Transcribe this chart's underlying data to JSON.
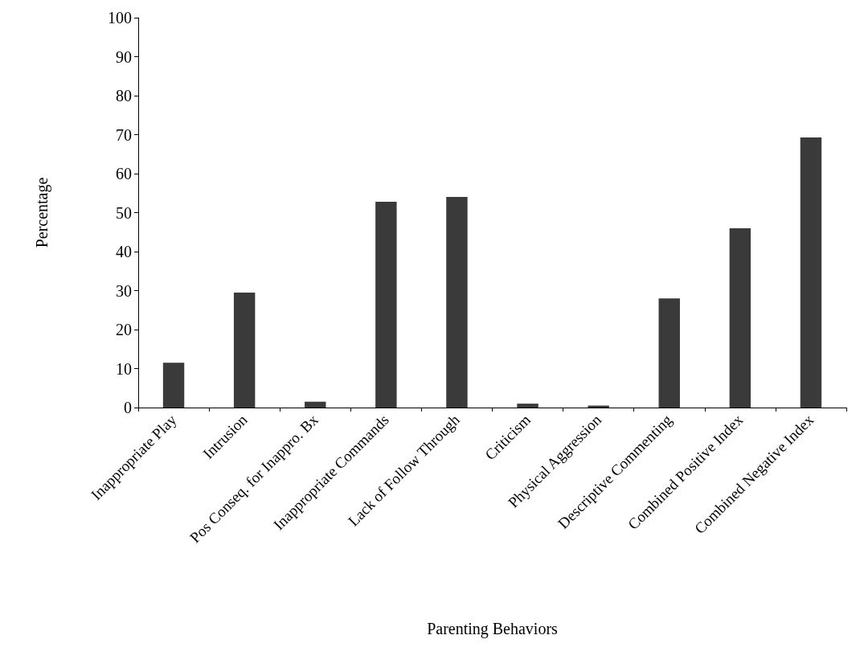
{
  "chart_data": {
    "type": "bar",
    "xlabel": "Parenting Behaviors",
    "ylabel": "Percentage",
    "categories": [
      "Inappropriate Play",
      "Intrusion",
      "Pos Conseq. for Inappro. Bx",
      "Inappropriate Commands",
      "Lack of Follow Through",
      "Criticism",
      "Physical Aggression",
      "Descriptive Commenting",
      "Combined Positive Index",
      "Combined Negative Index"
    ],
    "values": [
      11.5,
      29.5,
      1.5,
      52.8,
      54,
      1,
      0.5,
      28,
      46,
      69.3
    ],
    "color": "#3a3a3a",
    "ylim": [
      0,
      100
    ],
    "yticks": [
      0,
      10,
      20,
      30,
      40,
      50,
      60,
      70,
      80,
      90,
      100
    ],
    "grid": false
  }
}
